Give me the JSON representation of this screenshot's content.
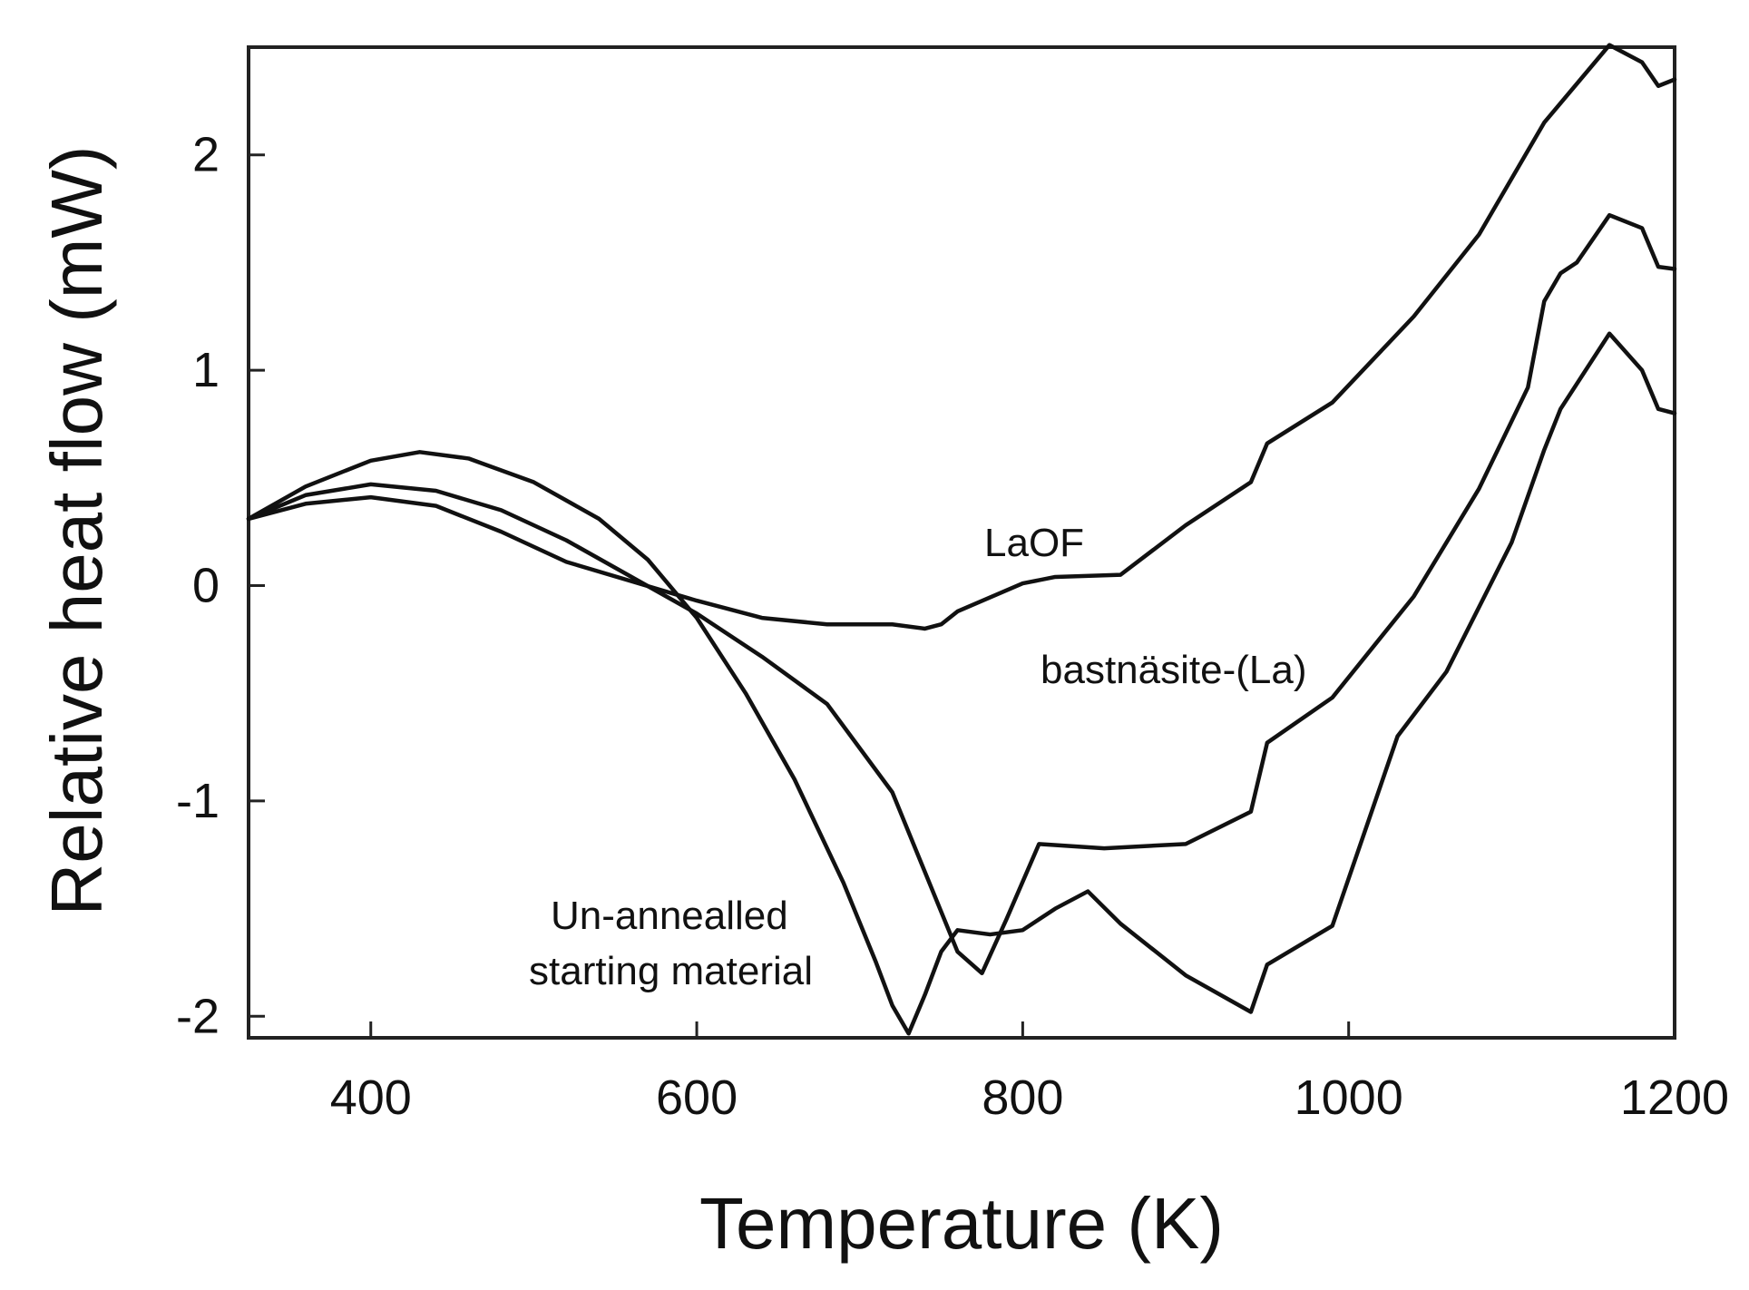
{
  "chart_data": {
    "type": "line",
    "title": "",
    "xlabel": "Temperature (K)",
    "ylabel": "Relative heat flow (mW)",
    "xlim": [
      325,
      1200
    ],
    "ylim": [
      -2.1,
      2.5
    ],
    "xticks": [
      400,
      600,
      800,
      1000,
      1200
    ],
    "yticks": [
      -2,
      -1,
      0,
      1,
      2
    ],
    "xtick_labels": [
      "400",
      "600",
      "800",
      "1000",
      "1200"
    ],
    "ytick_labels": [
      "-2",
      "-1",
      "0",
      "1",
      "2"
    ],
    "grid": false,
    "legend": "none",
    "colors": {
      "line": "#111111",
      "axis": "#222222",
      "background": "#ffffff"
    },
    "series": [
      {
        "name": "LaOF",
        "x": [
          325,
          360,
          400,
          440,
          480,
          520,
          560,
          600,
          640,
          680,
          720,
          740,
          750,
          760,
          800,
          820,
          860,
          900,
          940,
          950,
          990,
          1040,
          1080,
          1120,
          1150,
          1160,
          1180,
          1190,
          1200
        ],
        "y": [
          0.31,
          0.38,
          0.41,
          0.37,
          0.25,
          0.11,
          0.02,
          -0.07,
          -0.15,
          -0.18,
          -0.18,
          -0.2,
          -0.18,
          -0.12,
          0.01,
          0.04,
          0.05,
          0.28,
          0.48,
          0.66,
          0.85,
          1.25,
          1.63,
          2.15,
          2.42,
          2.51,
          2.43,
          2.32,
          2.35
        ]
      },
      {
        "name": "bastnäsite-(La)",
        "x": [
          325,
          360,
          400,
          440,
          480,
          520,
          560,
          600,
          640,
          680,
          720,
          760,
          775,
          790,
          810,
          850,
          900,
          940,
          950,
          990,
          1040,
          1080,
          1110,
          1120,
          1130,
          1140,
          1160,
          1180,
          1190,
          1200
        ],
        "y": [
          0.31,
          0.42,
          0.47,
          0.44,
          0.35,
          0.21,
          0.04,
          -0.13,
          -0.33,
          -0.55,
          -0.96,
          -1.7,
          -1.8,
          -1.55,
          -1.2,
          -1.22,
          -1.2,
          -1.05,
          -0.73,
          -0.52,
          -0.05,
          0.45,
          0.92,
          1.32,
          1.45,
          1.5,
          1.72,
          1.66,
          1.48,
          1.47
        ]
      },
      {
        "name": "Un-annealled starting material",
        "x": [
          325,
          360,
          400,
          430,
          460,
          500,
          540,
          570,
          600,
          630,
          660,
          690,
          710,
          720,
          730,
          740,
          750,
          760,
          780,
          800,
          820,
          840,
          860,
          900,
          940,
          950,
          990,
          1030,
          1060,
          1100,
          1120,
          1130,
          1160,
          1180,
          1190,
          1200
        ],
        "y": [
          0.31,
          0.46,
          0.58,
          0.62,
          0.59,
          0.48,
          0.31,
          0.12,
          -0.15,
          -0.5,
          -0.9,
          -1.38,
          -1.75,
          -1.95,
          -2.08,
          -1.9,
          -1.7,
          -1.6,
          -1.62,
          -1.6,
          -1.5,
          -1.42,
          -1.57,
          -1.81,
          -1.98,
          -1.76,
          -1.58,
          -0.7,
          -0.4,
          0.2,
          0.63,
          0.82,
          1.17,
          1.0,
          0.82,
          0.8
        ]
      }
    ],
    "annotations": [
      {
        "id": "laof",
        "text": "LaOF"
      },
      {
        "id": "bastnasite",
        "text": "bastnäsite-(La)"
      },
      {
        "id": "unannealed_line1",
        "text": "Un-annealled"
      },
      {
        "id": "unannealed_line2",
        "text": "starting material"
      }
    ]
  }
}
